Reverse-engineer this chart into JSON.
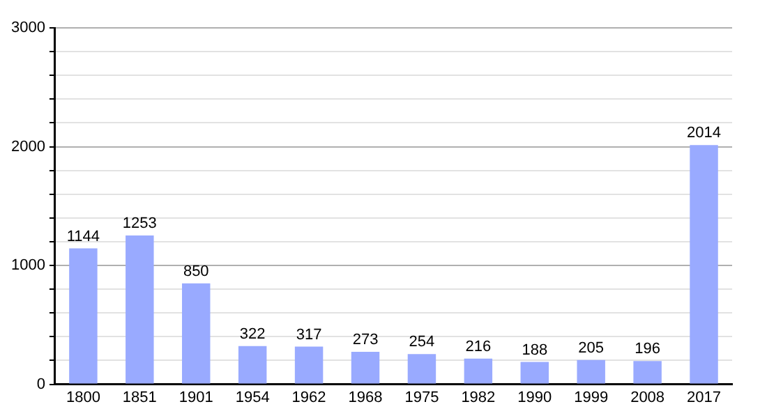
{
  "chart_data": {
    "type": "bar",
    "categories": [
      "1800",
      "1851",
      "1901",
      "1954",
      "1962",
      "1968",
      "1975",
      "1982",
      "1990",
      "1999",
      "2008",
      "2017"
    ],
    "values": [
      1144,
      1253,
      850,
      322,
      317,
      273,
      254,
      216,
      188,
      205,
      196,
      2014
    ],
    "color": "#99aaff",
    "ylim": [
      0,
      3000
    ],
    "yticks": [
      0,
      {
        "value": 200,
        "label": null
      },
      {
        "value": 400,
        "label": null
      },
      {
        "value": 600,
        "label": null
      },
      {
        "value": 800,
        "label": null
      },
      1000,
      {
        "value": 1200,
        "label": null
      },
      {
        "value": 1400,
        "label": null
      },
      {
        "value": 1600,
        "label": null
      },
      {
        "value": 1800,
        "label": null
      },
      2000,
      {
        "value": 2200,
        "label": null
      },
      {
        "value": 2400,
        "label": null
      },
      {
        "value": 2600,
        "label": null
      },
      {
        "value": 2800,
        "label": null
      },
      3000
    ],
    "grid": "y",
    "data_labels": true,
    "legend": false
  }
}
